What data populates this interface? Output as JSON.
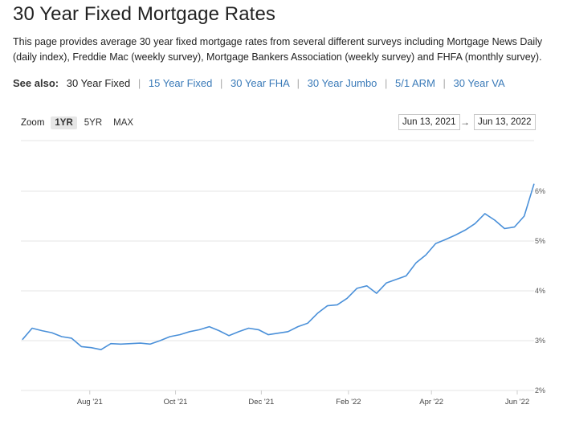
{
  "page": {
    "title": "30 Year Fixed Mortgage Rates",
    "description": "This page provides average 30 year fixed mortgage rates from several different surveys including Mortgage News Daily (daily index), Freddie Mac (weekly survey), Mortgage Bankers Association (weekly survey) and FHFA (monthly survey)."
  },
  "see_also": {
    "label": "See also:",
    "current": "30 Year Fixed",
    "links": [
      "15 Year Fixed",
      "30 Year FHA",
      "30 Year Jumbo",
      "5/1 ARM",
      "30 Year VA"
    ]
  },
  "zoom": {
    "label": "Zoom",
    "options": [
      "1YR",
      "5YR",
      "MAX"
    ],
    "active": "1YR"
  },
  "range": {
    "from": "Jun 13, 2021",
    "to": "Jun 13, 2022",
    "arrow": "→"
  },
  "colors": {
    "line": "#4a90d9",
    "link": "#3a7ab8",
    "grid": "#e6e6e6"
  },
  "chart_data": {
    "type": "line",
    "title": "",
    "xlabel": "",
    "ylabel": "",
    "x_ticks": [
      "Aug '21",
      "Oct '21",
      "Dec '21",
      "Feb '22",
      "Apr '22",
      "Jun '22"
    ],
    "y_ticks": [
      "2%",
      "3%",
      "4%",
      "5%",
      "6%"
    ],
    "ylim": [
      2,
      6
    ],
    "xlim": [
      "2021-06-13",
      "2022-06-13"
    ],
    "grid": true,
    "series": [
      {
        "x": [
          "2021-06-14",
          "2021-06-21",
          "2021-06-28",
          "2021-07-05",
          "2021-07-12",
          "2021-07-19",
          "2021-07-26",
          "2021-08-02",
          "2021-08-09",
          "2021-08-16",
          "2021-08-23",
          "2021-08-30",
          "2021-09-06",
          "2021-09-13",
          "2021-09-20",
          "2021-09-27",
          "2021-10-04",
          "2021-10-11",
          "2021-10-18",
          "2021-10-25",
          "2021-11-01",
          "2021-11-08",
          "2021-11-15",
          "2021-11-22",
          "2021-11-29",
          "2021-12-06",
          "2021-12-13",
          "2021-12-20",
          "2021-12-27",
          "2022-01-03",
          "2022-01-10",
          "2022-01-17",
          "2022-01-24",
          "2022-01-31",
          "2022-02-07",
          "2022-02-14",
          "2022-02-21",
          "2022-02-28",
          "2022-03-07",
          "2022-03-14",
          "2022-03-21",
          "2022-03-28",
          "2022-04-04",
          "2022-04-11",
          "2022-04-18",
          "2022-04-25",
          "2022-05-02",
          "2022-05-09",
          "2022-05-16",
          "2022-05-23",
          "2022-05-30",
          "2022-06-06",
          "2022-06-13"
        ],
        "y": [
          3.02,
          3.25,
          3.2,
          3.16,
          3.08,
          3.05,
          2.88,
          2.86,
          2.82,
          2.94,
          2.93,
          2.94,
          2.95,
          2.93,
          3.0,
          3.08,
          3.12,
          3.18,
          3.22,
          3.28,
          3.2,
          3.1,
          3.18,
          3.25,
          3.22,
          3.12,
          3.15,
          3.18,
          3.28,
          3.35,
          3.55,
          3.7,
          3.72,
          3.85,
          4.05,
          4.1,
          3.95,
          4.16,
          4.23,
          4.3,
          4.56,
          4.72,
          4.95,
          5.03,
          5.12,
          5.22,
          5.35,
          5.55,
          5.42,
          5.25,
          5.28,
          5.5,
          6.15
        ]
      }
    ]
  }
}
